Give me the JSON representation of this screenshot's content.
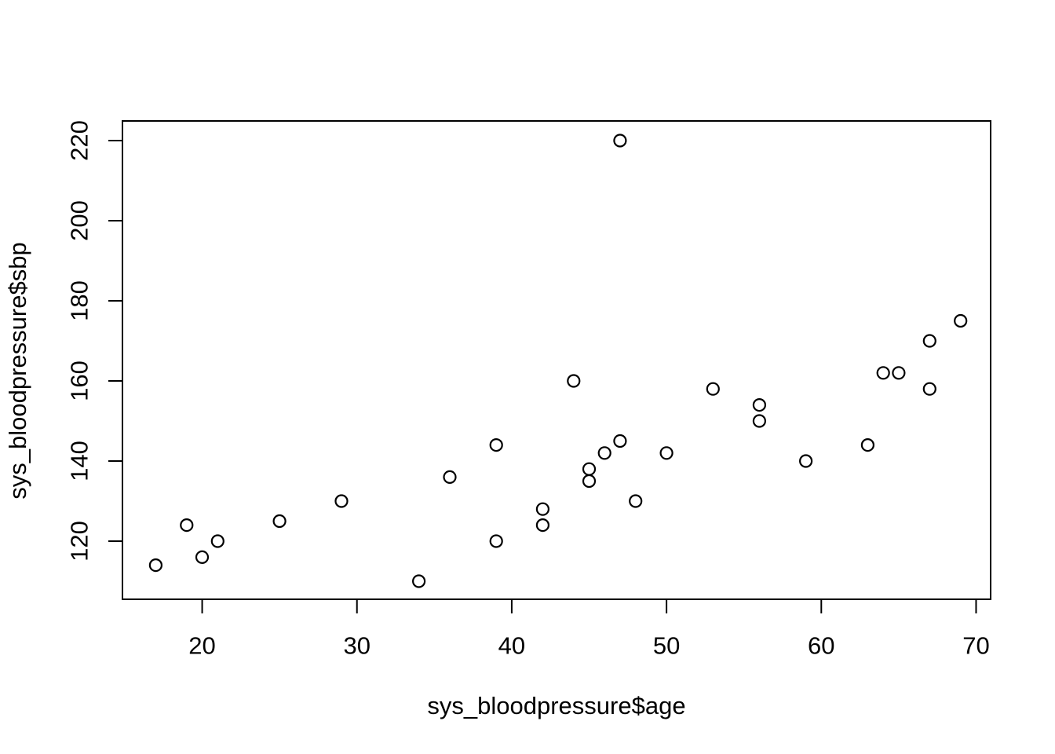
{
  "chart_data": {
    "type": "scatter",
    "title": "",
    "xlabel": "sys_bloodpressure$age",
    "ylabel": "sys_bloodpressure$sbp",
    "x_ticks": [
      20,
      30,
      40,
      50,
      60,
      70
    ],
    "y_ticks": [
      120,
      140,
      160,
      180,
      200,
      220
    ],
    "xlim": [
      14.85,
      70.94
    ],
    "ylim": [
      105.5,
      224.9
    ],
    "grid": "off",
    "legend": "none",
    "marker": "open-circle",
    "marker_color": "#000000",
    "background_color": "#ffffff",
    "points": [
      [
        17,
        114
      ],
      [
        19,
        124
      ],
      [
        20,
        116
      ],
      [
        21,
        120
      ],
      [
        25,
        125
      ],
      [
        29,
        130
      ],
      [
        34,
        110
      ],
      [
        36,
        136
      ],
      [
        39,
        120
      ],
      [
        39,
        144
      ],
      [
        42,
        124
      ],
      [
        42,
        128
      ],
      [
        44,
        160
      ],
      [
        45,
        135
      ],
      [
        45,
        138
      ],
      [
        46,
        142
      ],
      [
        47,
        145
      ],
      [
        47,
        220
      ],
      [
        48,
        130
      ],
      [
        50,
        142
      ],
      [
        53,
        158
      ],
      [
        56,
        150
      ],
      [
        56,
        154
      ],
      [
        59,
        140
      ],
      [
        63,
        144
      ],
      [
        64,
        162
      ],
      [
        65,
        162
      ],
      [
        67,
        158
      ],
      [
        67,
        170
      ],
      [
        69,
        175
      ]
    ]
  }
}
